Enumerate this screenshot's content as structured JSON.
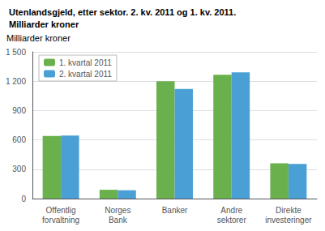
{
  "chart_data": {
    "type": "bar",
    "title": "Utenlandsgjeld, etter sektor. 2. kv. 2011 og 1. kv. 2011.",
    "subtitle": "Milliarder kroner",
    "ylabel": "Milliarder kroner",
    "categories": [
      "Offentlig\nforvaltning",
      "Norges\nBank",
      "Banker",
      "Andre\nsektorer",
      "Direkte\ninvesteringer"
    ],
    "series": [
      {
        "name": "1. kvartal 2011",
        "color": "#6ab04c",
        "values": [
          640,
          90,
          1200,
          1265,
          360
        ]
      },
      {
        "name": "2. kvartal 2011",
        "color": "#4a9fd4",
        "values": [
          645,
          85,
          1120,
          1290,
          355
        ]
      }
    ],
    "ylim": [
      0,
      1500
    ],
    "yticks": [
      0,
      300,
      600,
      900,
      {
        "value": 1200,
        "label": "1 200"
      },
      {
        "value": 1500,
        "label": "1 500"
      }
    ],
    "grid": true,
    "legend": "upper left"
  }
}
